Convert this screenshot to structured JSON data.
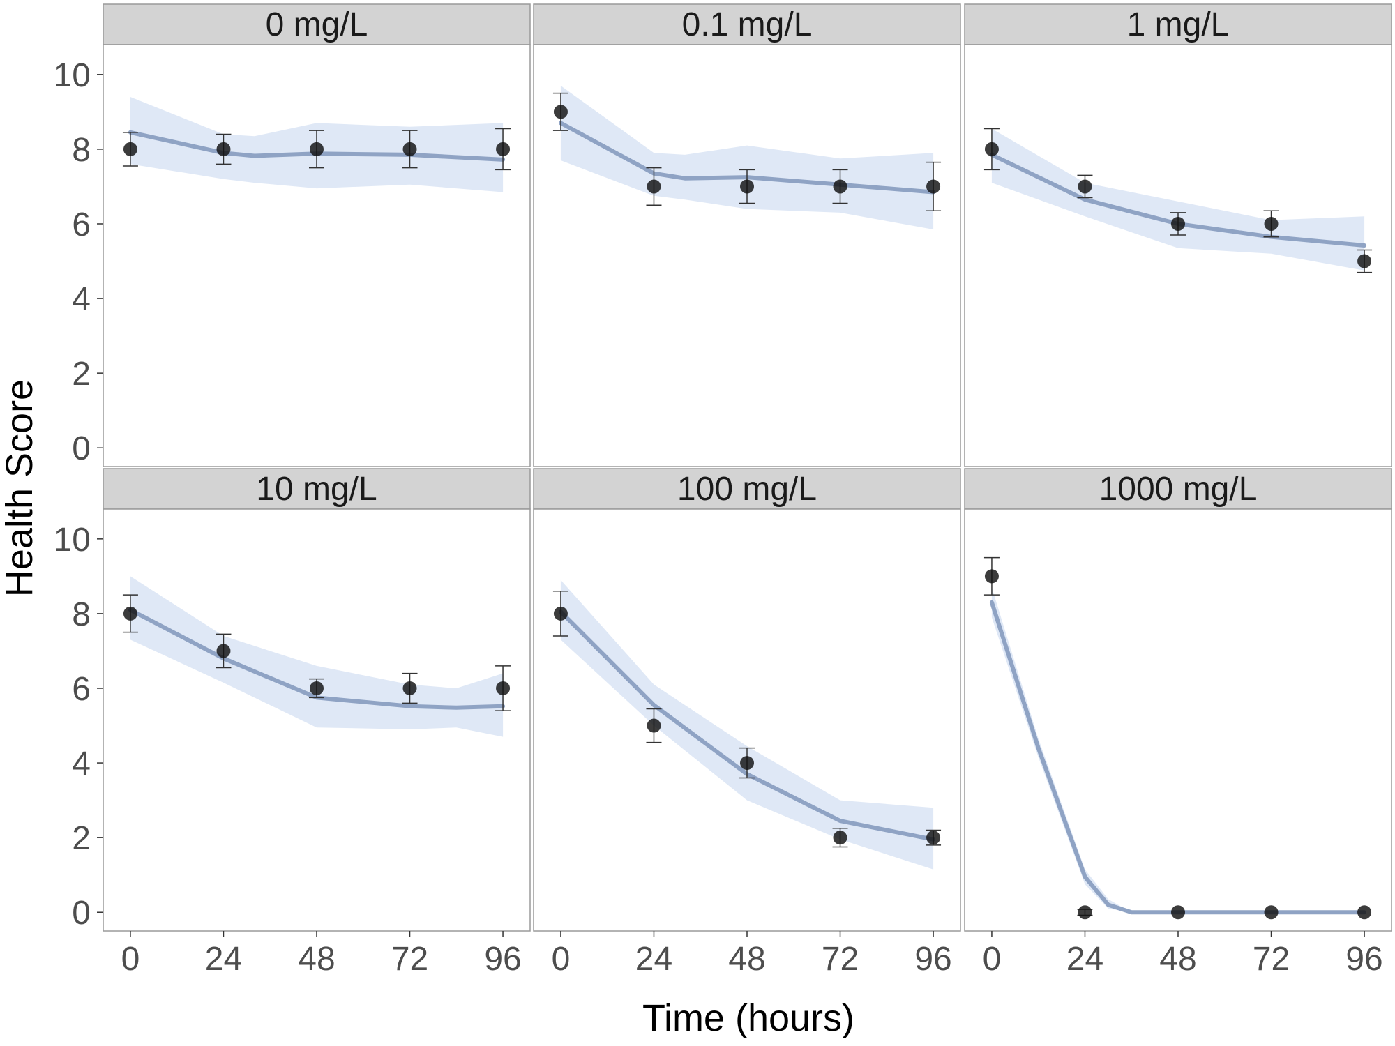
{
  "chart_data": {
    "type": "line",
    "xlabel": "Time (hours)",
    "ylabel": "Health Score",
    "x_ticks": [
      0,
      24,
      48,
      72,
      96
    ],
    "y_ticks": [
      0,
      2,
      4,
      6,
      8,
      10
    ],
    "xlim": [
      -7,
      103
    ],
    "ylim": [
      -0.5,
      10.8
    ],
    "colors": {
      "point": "#111111",
      "errorbar": "#333333",
      "smooth_line": "#8fa3c4",
      "ribbon": "#dbe6f5",
      "strip_bg": "#d3d3d3",
      "panel_border": "#9a9a9a"
    },
    "panels": [
      {
        "title": "0 mg/L",
        "points": [
          {
            "x": 0,
            "y": 8,
            "lo": 7.55,
            "hi": 8.45
          },
          {
            "x": 24,
            "y": 8,
            "lo": 7.6,
            "hi": 8.4
          },
          {
            "x": 48,
            "y": 8,
            "lo": 7.5,
            "hi": 8.5
          },
          {
            "x": 72,
            "y": 8,
            "lo": 7.5,
            "hi": 8.5
          },
          {
            "x": 96,
            "y": 8,
            "lo": 7.45,
            "hi": 8.55
          }
        ],
        "smooth": [
          {
            "x": 0,
            "y": 8.45,
            "lo": 7.6,
            "hi": 9.4
          },
          {
            "x": 24,
            "y": 7.9,
            "lo": 7.2,
            "hi": 8.4
          },
          {
            "x": 32,
            "y": 7.82,
            "lo": 7.1,
            "hi": 8.35
          },
          {
            "x": 48,
            "y": 7.88,
            "lo": 6.95,
            "hi": 8.7
          },
          {
            "x": 72,
            "y": 7.85,
            "lo": 7.05,
            "hi": 8.6
          },
          {
            "x": 96,
            "y": 7.72,
            "lo": 6.85,
            "hi": 8.7
          }
        ]
      },
      {
        "title": "0.1 mg/L",
        "points": [
          {
            "x": 0,
            "y": 9,
            "lo": 8.5,
            "hi": 9.5
          },
          {
            "x": 24,
            "y": 7,
            "lo": 6.5,
            "hi": 7.5
          },
          {
            "x": 48,
            "y": 7,
            "lo": 6.55,
            "hi": 7.45
          },
          {
            "x": 72,
            "y": 7,
            "lo": 6.55,
            "hi": 7.45
          },
          {
            "x": 96,
            "y": 7,
            "lo": 6.35,
            "hi": 7.65
          }
        ],
        "smooth": [
          {
            "x": 0,
            "y": 8.7,
            "lo": 7.7,
            "hi": 9.7
          },
          {
            "x": 24,
            "y": 7.35,
            "lo": 6.75,
            "hi": 7.9
          },
          {
            "x": 32,
            "y": 7.22,
            "lo": 6.65,
            "hi": 7.85
          },
          {
            "x": 48,
            "y": 7.25,
            "lo": 6.4,
            "hi": 8.1
          },
          {
            "x": 72,
            "y": 7.05,
            "lo": 6.3,
            "hi": 7.75
          },
          {
            "x": 96,
            "y": 6.85,
            "lo": 5.85,
            "hi": 7.9
          }
        ]
      },
      {
        "title": "1 mg/L",
        "points": [
          {
            "x": 0,
            "y": 8,
            "lo": 7.45,
            "hi": 8.55
          },
          {
            "x": 24,
            "y": 7,
            "lo": 6.7,
            "hi": 7.3
          },
          {
            "x": 48,
            "y": 6,
            "lo": 5.7,
            "hi": 6.3
          },
          {
            "x": 72,
            "y": 6,
            "lo": 5.65,
            "hi": 6.35
          },
          {
            "x": 96,
            "y": 5,
            "lo": 4.7,
            "hi": 5.3
          }
        ],
        "smooth": [
          {
            "x": 0,
            "y": 7.85,
            "lo": 7.1,
            "hi": 8.55
          },
          {
            "x": 24,
            "y": 6.65,
            "lo": 6.2,
            "hi": 7.1
          },
          {
            "x": 48,
            "y": 6.0,
            "lo": 5.35,
            "hi": 6.6
          },
          {
            "x": 72,
            "y": 5.65,
            "lo": 5.2,
            "hi": 6.1
          },
          {
            "x": 96,
            "y": 5.42,
            "lo": 4.75,
            "hi": 6.2
          }
        ]
      },
      {
        "title": "10 mg/L",
        "points": [
          {
            "x": 0,
            "y": 8,
            "lo": 7.5,
            "hi": 8.5
          },
          {
            "x": 24,
            "y": 7,
            "lo": 6.55,
            "hi": 7.45
          },
          {
            "x": 48,
            "y": 6,
            "lo": 5.75,
            "hi": 6.25
          },
          {
            "x": 72,
            "y": 6,
            "lo": 5.6,
            "hi": 6.4
          },
          {
            "x": 96,
            "y": 6,
            "lo": 5.4,
            "hi": 6.6
          }
        ],
        "smooth": [
          {
            "x": 0,
            "y": 8.1,
            "lo": 7.3,
            "hi": 9.0
          },
          {
            "x": 24,
            "y": 6.8,
            "lo": 6.15,
            "hi": 7.4
          },
          {
            "x": 48,
            "y": 5.75,
            "lo": 4.95,
            "hi": 6.6
          },
          {
            "x": 72,
            "y": 5.52,
            "lo": 4.9,
            "hi": 6.1
          },
          {
            "x": 84,
            "y": 5.48,
            "lo": 4.95,
            "hi": 6.0
          },
          {
            "x": 96,
            "y": 5.52,
            "lo": 4.7,
            "hi": 6.4
          }
        ]
      },
      {
        "title": "100 mg/L",
        "points": [
          {
            "x": 0,
            "y": 8,
            "lo": 7.4,
            "hi": 8.6
          },
          {
            "x": 24,
            "y": 5,
            "lo": 4.55,
            "hi": 5.45
          },
          {
            "x": 48,
            "y": 4,
            "lo": 3.6,
            "hi": 4.4
          },
          {
            "x": 72,
            "y": 2,
            "lo": 1.75,
            "hi": 2.25
          },
          {
            "x": 96,
            "y": 2,
            "lo": 1.8,
            "hi": 2.2
          }
        ],
        "smooth": [
          {
            "x": 0,
            "y": 8.05,
            "lo": 7.3,
            "hi": 8.9
          },
          {
            "x": 24,
            "y": 5.55,
            "lo": 5.0,
            "hi": 6.1
          },
          {
            "x": 48,
            "y": 3.7,
            "lo": 3.0,
            "hi": 4.45
          },
          {
            "x": 72,
            "y": 2.45,
            "lo": 1.95,
            "hi": 3.0
          },
          {
            "x": 96,
            "y": 1.95,
            "lo": 1.15,
            "hi": 2.8
          }
        ]
      },
      {
        "title": "1000 mg/L",
        "points": [
          {
            "x": 0,
            "y": 9,
            "lo": 8.5,
            "hi": 9.5
          },
          {
            "x": 24,
            "y": 0,
            "lo": -0.08,
            "hi": 0.08
          },
          {
            "x": 48,
            "y": 0,
            "lo": 0,
            "hi": 0
          },
          {
            "x": 72,
            "y": 0,
            "lo": 0,
            "hi": 0
          },
          {
            "x": 96,
            "y": 0,
            "lo": 0,
            "hi": 0
          }
        ],
        "smooth": [
          {
            "x": 0,
            "y": 8.3,
            "lo": 7.9,
            "hi": 8.7
          },
          {
            "x": 12,
            "y": 4.4,
            "lo": 4.15,
            "hi": 4.65
          },
          {
            "x": 24,
            "y": 0.95,
            "lo": 0.75,
            "hi": 1.15
          },
          {
            "x": 30,
            "y": 0.2,
            "lo": 0.1,
            "hi": 0.35
          },
          {
            "x": 36,
            "y": 0.0,
            "lo": 0.0,
            "hi": 0.0
          },
          {
            "x": 96,
            "y": 0.0,
            "lo": 0.0,
            "hi": 0.0
          }
        ]
      }
    ]
  }
}
